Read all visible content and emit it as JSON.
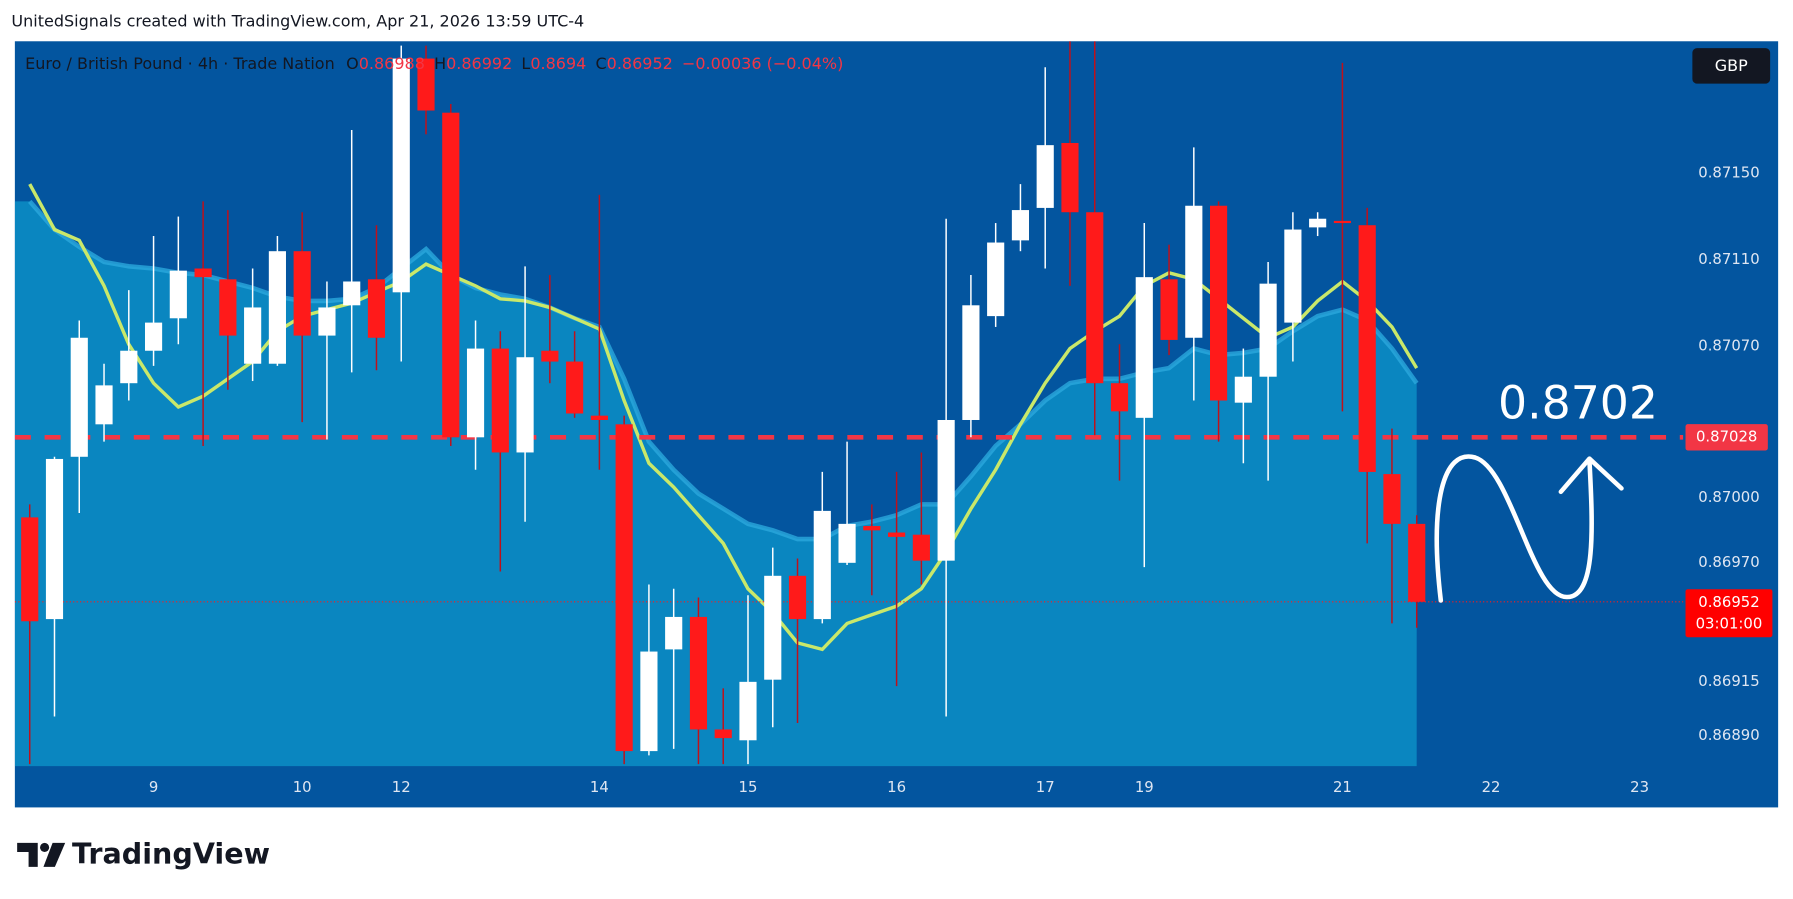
{
  "chart_data": {
    "type": "candlestick",
    "watermark": "UnitedSignals created with TradingView.com, Apr 21, 2026 13:59 UTC-4",
    "symbol": "Euro / British Pound · 4h · Trade Nation",
    "ohlc_labels": [
      "O",
      "H",
      "L",
      "C"
    ],
    "change": "−0.00036 (−0.04%)",
    "currency": "GBP",
    "countdown": "03:01:00",
    "annotation": "0.8702",
    "brand": "TradingView",
    "up_color": "#ffffff",
    "down_color": "#ff1a1a",
    "open": [
      0.86991,
      0.86944,
      0.87019,
      0.87034,
      0.87053,
      0.87068,
      0.87083,
      0.87106,
      0.87101,
      0.87062,
      0.87062,
      0.87114,
      0.87075,
      0.87089,
      0.87101,
      0.87095,
      0.87203,
      0.87178,
      0.87028,
      0.87069,
      0.87021,
      0.87068,
      0.87063,
      0.87038,
      0.87034,
      0.86883,
      0.8693,
      0.86945,
      0.86893,
      0.86888,
      0.86916,
      0.86964,
      0.86944,
      0.8697,
      0.86987,
      0.86984,
      0.86983,
      0.86971,
      0.87036,
      0.87084,
      0.87119,
      0.87134,
      0.87164,
      0.87132,
      0.87053,
      0.87037,
      0.87101,
      0.87074,
      0.87135,
      0.87044,
      0.87056,
      0.87081,
      0.87125,
      0.87128,
      0.87126,
      0.87011,
      0.86988
    ],
    "high": [
      0.86997,
      0.87019,
      0.87082,
      0.87062,
      0.87096,
      0.87121,
      0.8713,
      0.87137,
      0.87133,
      0.87106,
      0.87121,
      0.87132,
      0.871,
      0.8717,
      0.87126,
      0.87209,
      0.87209,
      0.87182,
      0.87082,
      0.87077,
      0.87107,
      0.87103,
      0.87077,
      0.8714,
      0.87038,
      0.8696,
      0.86958,
      0.86954,
      0.86912,
      0.86955,
      0.86977,
      0.86972,
      0.87012,
      0.87026,
      0.86997,
      0.87012,
      0.87021,
      0.87129,
      0.87103,
      0.87127,
      0.87145,
      0.87199,
      0.87211,
      0.87211,
      0.87071,
      0.87127,
      0.87117,
      0.87162,
      0.87137,
      0.87069,
      0.87109,
      0.87132,
      0.87132,
      0.87201,
      0.87134,
      0.87032,
      0.86992
    ],
    "low": [
      0.86877,
      0.86899,
      0.86993,
      0.87026,
      0.87045,
      0.87061,
      0.87071,
      0.87024,
      0.8705,
      0.87054,
      0.87061,
      0.87035,
      0.87027,
      0.87058,
      0.87059,
      0.87063,
      0.87168,
      0.87024,
      0.87013,
      0.86966,
      0.86989,
      0.87053,
      0.87037,
      0.87013,
      0.86877,
      0.86881,
      0.86884,
      0.86877,
      0.86877,
      0.86877,
      0.86894,
      0.86896,
      0.86942,
      0.86969,
      0.86955,
      0.86913,
      0.8696,
      0.86899,
      0.87028,
      0.87079,
      0.87114,
      0.87106,
      0.87098,
      0.87029,
      0.87008,
      0.86968,
      0.87066,
      0.87045,
      0.87026,
      0.87016,
      0.87008,
      0.87063,
      0.87121,
      0.8704,
      0.86979,
      0.86942,
      0.8694
    ],
    "close": [
      0.86943,
      0.87018,
      0.87074,
      0.87052,
      0.87068,
      0.87081,
      0.87105,
      0.87102,
      0.87075,
      0.87088,
      0.87114,
      0.87075,
      0.87088,
      0.871,
      0.87074,
      0.87203,
      0.87179,
      0.87028,
      0.87069,
      0.87021,
      0.87065,
      0.87063,
      0.87039,
      0.87036,
      0.86883,
      0.86929,
      0.86945,
      0.86893,
      0.86889,
      0.86915,
      0.86964,
      0.86944,
      0.86994,
      0.86988,
      0.86985,
      0.86982,
      0.86971,
      0.87036,
      0.87089,
      0.87118,
      0.87133,
      0.87163,
      0.87132,
      0.87053,
      0.8704,
      0.87102,
      0.87073,
      0.87135,
      0.87045,
      0.87056,
      0.87099,
      0.87124,
      0.87129,
      0.87127,
      0.87012,
      0.86988,
      0.86952
    ],
    "overlays": [
      {
        "kind": "line",
        "color": "#c9e86a",
        "values": [
          0.87145,
          0.87124,
          0.87119,
          0.87098,
          0.87071,
          0.87053,
          0.87042,
          0.87047,
          0.87055,
          0.87063,
          0.87077,
          0.87084,
          0.87087,
          0.8709,
          0.87095,
          0.871,
          0.87108,
          0.87103,
          0.87098,
          0.87092,
          0.87091,
          0.87088,
          0.87083,
          0.87078,
          0.87045,
          0.87016,
          0.87005,
          0.86992,
          0.86979,
          0.86958,
          0.86947,
          0.86933,
          0.8693,
          0.86942,
          0.86946,
          0.8695,
          0.86958,
          0.86975,
          0.86995,
          0.87013,
          0.87034,
          0.87053,
          0.87069,
          0.87077,
          0.87084,
          0.87098,
          0.87104,
          0.87101,
          0.87092,
          0.87083,
          0.87074,
          0.87079,
          0.87091,
          0.871,
          0.87091,
          0.87079,
          0.8706
        ]
      },
      {
        "kind": "area",
        "color": "#0a86c0",
        "values": [
          0.87137,
          0.87124,
          0.87116,
          0.87109,
          0.87107,
          0.87106,
          0.87104,
          0.87103,
          0.871,
          0.87097,
          0.87093,
          0.87091,
          0.87091,
          0.87092,
          0.87097,
          0.87106,
          0.87115,
          0.87103,
          0.87097,
          0.87094,
          0.87092,
          0.87088,
          0.87083,
          0.87079,
          0.87055,
          0.87026,
          0.87013,
          0.87002,
          0.86995,
          0.86988,
          0.86985,
          0.86981,
          0.86981,
          0.86987,
          0.86989,
          0.86992,
          0.86997,
          0.86997,
          0.8701,
          0.87024,
          0.87034,
          0.87045,
          0.87053,
          0.87055,
          0.87055,
          0.87058,
          0.8706,
          0.87069,
          0.87066,
          0.87067,
          0.87069,
          0.87077,
          0.87084,
          0.87087,
          0.87082,
          0.87069,
          0.87053
        ]
      }
    ],
    "hline": 0.87028,
    "hline_color": "#f23645",
    "ylim": [
      0.86876,
      0.87211
    ],
    "yticks": [
      {
        "value": 0.8715,
        "label": "0.87150"
      },
      {
        "value": 0.8711,
        "label": "0.87110"
      },
      {
        "value": 0.8707,
        "label": "0.87070"
      },
      {
        "value": 0.87,
        "label": "0.87000"
      },
      {
        "value": 0.8697,
        "label": "0.86970"
      },
      0.86915,
      {
        "value": 0.8689,
        "label": "0.86890"
      }
    ],
    "xlim": [
      -0.6,
      66.76
    ],
    "xticks": [
      {
        "value": 5,
        "label": "9"
      },
      {
        "value": 11,
        "label": "10"
      },
      {
        "value": 15,
        "label": "12"
      },
      {
        "value": 23,
        "label": "14"
      },
      {
        "value": 29,
        "label": "15"
      },
      {
        "value": 35,
        "label": "16"
      },
      {
        "value": 41,
        "label": "17"
      },
      {
        "value": 45,
        "label": "19"
      },
      {
        "value": 53,
        "label": "21"
      },
      {
        "value": 59,
        "label": "22"
      },
      {
        "value": 65,
        "label": "23"
      }
    ],
    "grid": false
  }
}
